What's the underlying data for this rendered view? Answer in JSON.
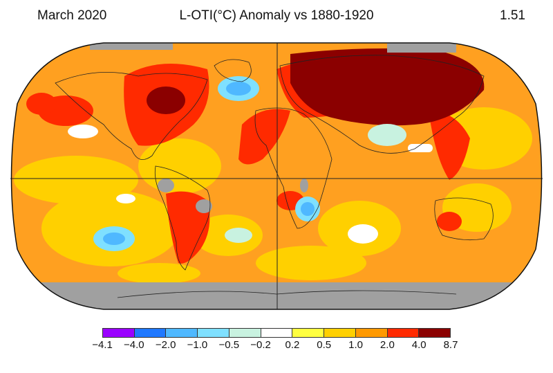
{
  "header": {
    "date": "March 2020",
    "title": "L-OTI(°C) Anomaly vs 1880-1920",
    "global_mean": "1.51"
  },
  "legend": {
    "colors": [
      "#9a00ff",
      "#1f78ff",
      "#4fb8ff",
      "#7fe0ff",
      "#c8f2e0",
      "#ffffff",
      "#ffff40",
      "#ffd000",
      "#ff9900",
      "#ff2a00",
      "#8b0000"
    ],
    "ticks": [
      "−4.1",
      "−4.0",
      "−2.0",
      "−1.0",
      "−0.5",
      "−0.2",
      "0.2",
      "0.5",
      "1.0",
      "2.0",
      "4.0",
      "8.7"
    ]
  },
  "map": {
    "projection": "Robinson",
    "base_color": "#ffa020",
    "missing_color": "#a0a0a0"
  }
}
